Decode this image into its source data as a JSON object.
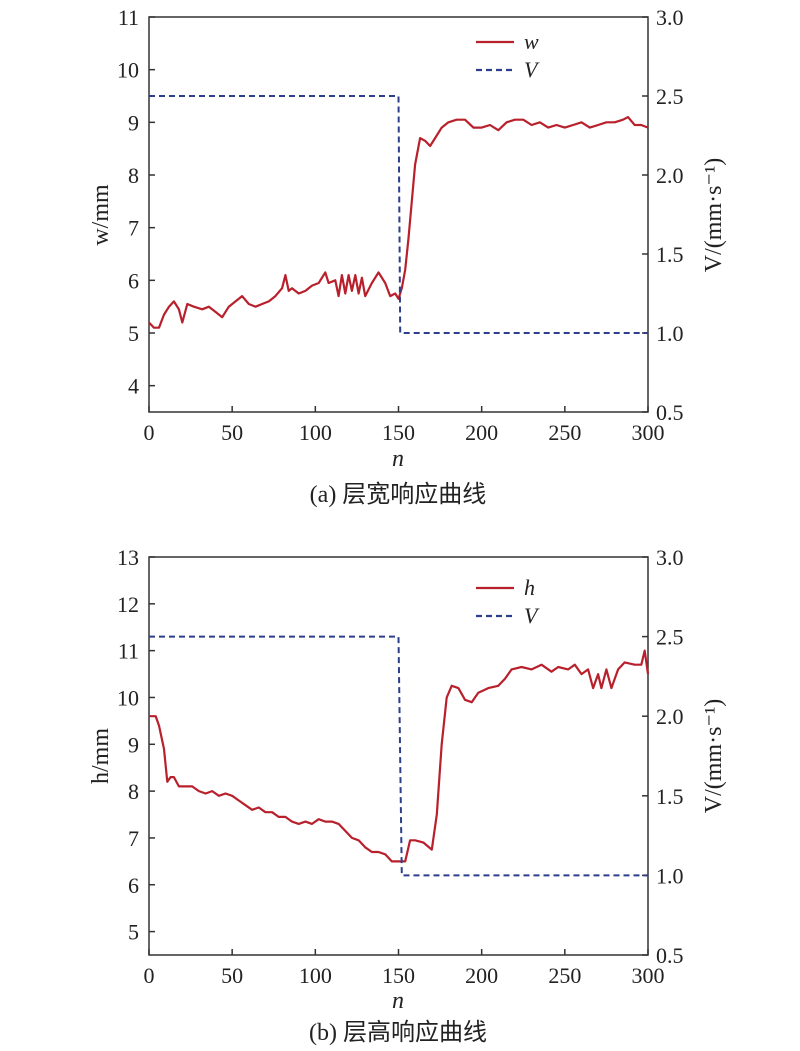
{
  "chart_data": [
    {
      "type": "line",
      "caption": "(a) 层宽响应曲线",
      "xlabel": "n",
      "ylabel": "w/mm",
      "y2label": "V/(mm·s⁻¹)",
      "xlim": [
        0,
        300
      ],
      "ylim": [
        3.5,
        11
      ],
      "y2lim": [
        0.5,
        3.0
      ],
      "xticks": [
        0,
        50,
        100,
        150,
        200,
        250,
        300
      ],
      "yticks": [
        4,
        5,
        6,
        7,
        8,
        9,
        10,
        11
      ],
      "y2ticks": [
        "0.5",
        "1.0",
        "1.5",
        "2.0",
        "2.5",
        "3.0"
      ],
      "legend_position": "top-right",
      "grid": false,
      "series": [
        {
          "name": "w",
          "axis": "left",
          "color": "#b8202c",
          "style": "solid",
          "points": [
            [
              0,
              5.2
            ],
            [
              3,
              5.1
            ],
            [
              6,
              5.1
            ],
            [
              9,
              5.35
            ],
            [
              12,
              5.5
            ],
            [
              15,
              5.6
            ],
            [
              18,
              5.45
            ],
            [
              20,
              5.2
            ],
            [
              23,
              5.55
            ],
            [
              27,
              5.5
            ],
            [
              32,
              5.45
            ],
            [
              36,
              5.5
            ],
            [
              40,
              5.4
            ],
            [
              44,
              5.3
            ],
            [
              48,
              5.5
            ],
            [
              52,
              5.6
            ],
            [
              56,
              5.7
            ],
            [
              60,
              5.55
            ],
            [
              64,
              5.5
            ],
            [
              68,
              5.55
            ],
            [
              72,
              5.6
            ],
            [
              76,
              5.7
            ],
            [
              80,
              5.85
            ],
            [
              82,
              6.1
            ],
            [
              84,
              5.8
            ],
            [
              86,
              5.85
            ],
            [
              90,
              5.75
            ],
            [
              94,
              5.8
            ],
            [
              98,
              5.9
            ],
            [
              102,
              5.95
            ],
            [
              106,
              6.15
            ],
            [
              108,
              5.95
            ],
            [
              112,
              6.0
            ],
            [
              114,
              5.7
            ],
            [
              116,
              6.1
            ],
            [
              118,
              5.75
            ],
            [
              120,
              6.1
            ],
            [
              122,
              5.8
            ],
            [
              124,
              6.1
            ],
            [
              126,
              5.75
            ],
            [
              128,
              6.05
            ],
            [
              130,
              5.7
            ],
            [
              134,
              5.95
            ],
            [
              138,
              6.15
            ],
            [
              142,
              5.95
            ],
            [
              145,
              5.7
            ],
            [
              148,
              5.75
            ],
            [
              150,
              5.65
            ],
            [
              152,
              5.85
            ],
            [
              154,
              6.2
            ],
            [
              156,
              6.8
            ],
            [
              158,
              7.5
            ],
            [
              160,
              8.2
            ],
            [
              163,
              8.7
            ],
            [
              166,
              8.65
            ],
            [
              169,
              8.55
            ],
            [
              172,
              8.7
            ],
            [
              176,
              8.9
            ],
            [
              180,
              9.0
            ],
            [
              185,
              9.05
            ],
            [
              190,
              9.05
            ],
            [
              195,
              8.9
            ],
            [
              200,
              8.9
            ],
            [
              205,
              8.95
            ],
            [
              210,
              8.85
            ],
            [
              215,
              9.0
            ],
            [
              220,
              9.05
            ],
            [
              225,
              9.05
            ],
            [
              230,
              8.95
            ],
            [
              235,
              9.0
            ],
            [
              240,
              8.9
            ],
            [
              245,
              8.95
            ],
            [
              250,
              8.9
            ],
            [
              255,
              8.95
            ],
            [
              260,
              9.0
            ],
            [
              265,
              8.9
            ],
            [
              270,
              8.95
            ],
            [
              275,
              9.0
            ],
            [
              280,
              9.0
            ],
            [
              285,
              9.05
            ],
            [
              288,
              9.1
            ],
            [
              292,
              8.95
            ],
            [
              296,
              8.95
            ],
            [
              300,
              8.9
            ]
          ]
        },
        {
          "name": "V",
          "axis": "right",
          "color": "#2c3e8c",
          "style": "dashed",
          "points": [
            [
              0,
              2.5
            ],
            [
              150,
              2.5
            ],
            [
              151,
              1.0
            ],
            [
              300,
              1.0
            ]
          ]
        }
      ]
    },
    {
      "type": "line",
      "caption": "(b) 层高响应曲线",
      "xlabel": "n",
      "ylabel": "h/mm",
      "y2label": "V/(mm·s⁻¹)",
      "xlim": [
        0,
        300
      ],
      "ylim": [
        4.5,
        13
      ],
      "y2lim": [
        0.5,
        3.0
      ],
      "xticks": [
        0,
        50,
        100,
        150,
        200,
        250,
        300
      ],
      "yticks": [
        5,
        6,
        7,
        8,
        9,
        10,
        11,
        12,
        13
      ],
      "y2ticks": [
        "0.5",
        "1.0",
        "1.5",
        "2.0",
        "2.5",
        "3.0"
      ],
      "legend_position": "top-right",
      "grid": false,
      "series": [
        {
          "name": "h",
          "axis": "left",
          "color": "#b8202c",
          "style": "solid",
          "points": [
            [
              0,
              9.6
            ],
            [
              4,
              9.6
            ],
            [
              6,
              9.4
            ],
            [
              9,
              8.9
            ],
            [
              11,
              8.2
            ],
            [
              13,
              8.3
            ],
            [
              15,
              8.3
            ],
            [
              18,
              8.1
            ],
            [
              22,
              8.1
            ],
            [
              26,
              8.1
            ],
            [
              30,
              8.0
            ],
            [
              34,
              7.95
            ],
            [
              38,
              8.0
            ],
            [
              42,
              7.9
            ],
            [
              46,
              7.95
            ],
            [
              50,
              7.9
            ],
            [
              54,
              7.8
            ],
            [
              58,
              7.7
            ],
            [
              62,
              7.6
            ],
            [
              66,
              7.65
            ],
            [
              70,
              7.55
            ],
            [
              74,
              7.55
            ],
            [
              78,
              7.45
            ],
            [
              82,
              7.45
            ],
            [
              86,
              7.35
            ],
            [
              90,
              7.3
            ],
            [
              94,
              7.35
            ],
            [
              98,
              7.3
            ],
            [
              102,
              7.4
            ],
            [
              106,
              7.35
            ],
            [
              110,
              7.35
            ],
            [
              114,
              7.3
            ],
            [
              118,
              7.15
            ],
            [
              122,
              7.0
            ],
            [
              126,
              6.95
            ],
            [
              130,
              6.8
            ],
            [
              134,
              6.7
            ],
            [
              138,
              6.7
            ],
            [
              142,
              6.65
            ],
            [
              146,
              6.5
            ],
            [
              150,
              6.5
            ],
            [
              154,
              6.5
            ],
            [
              157,
              6.95
            ],
            [
              160,
              6.95
            ],
            [
              165,
              6.9
            ],
            [
              170,
              6.75
            ],
            [
              173,
              7.5
            ],
            [
              176,
              9.0
            ],
            [
              179,
              10.0
            ],
            [
              182,
              10.25
            ],
            [
              186,
              10.2
            ],
            [
              190,
              9.95
            ],
            [
              194,
              9.9
            ],
            [
              198,
              10.1
            ],
            [
              204,
              10.2
            ],
            [
              210,
              10.25
            ],
            [
              214,
              10.4
            ],
            [
              218,
              10.6
            ],
            [
              224,
              10.65
            ],
            [
              230,
              10.6
            ],
            [
              236,
              10.7
            ],
            [
              242,
              10.55
            ],
            [
              246,
              10.65
            ],
            [
              252,
              10.6
            ],
            [
              256,
              10.7
            ],
            [
              260,
              10.5
            ],
            [
              264,
              10.6
            ],
            [
              267,
              10.2
            ],
            [
              270,
              10.5
            ],
            [
              272,
              10.2
            ],
            [
              275,
              10.6
            ],
            [
              278,
              10.2
            ],
            [
              282,
              10.6
            ],
            [
              286,
              10.75
            ],
            [
              292,
              10.7
            ],
            [
              296,
              10.7
            ],
            [
              298,
              11.0
            ],
            [
              300,
              10.5
            ]
          ]
        },
        {
          "name": "V",
          "axis": "right",
          "color": "#2c3e8c",
          "style": "dashed",
          "points": [
            [
              0,
              2.5
            ],
            [
              150,
              2.5
            ],
            [
              152,
              1.0
            ],
            [
              300,
              1.0
            ]
          ]
        }
      ]
    }
  ]
}
